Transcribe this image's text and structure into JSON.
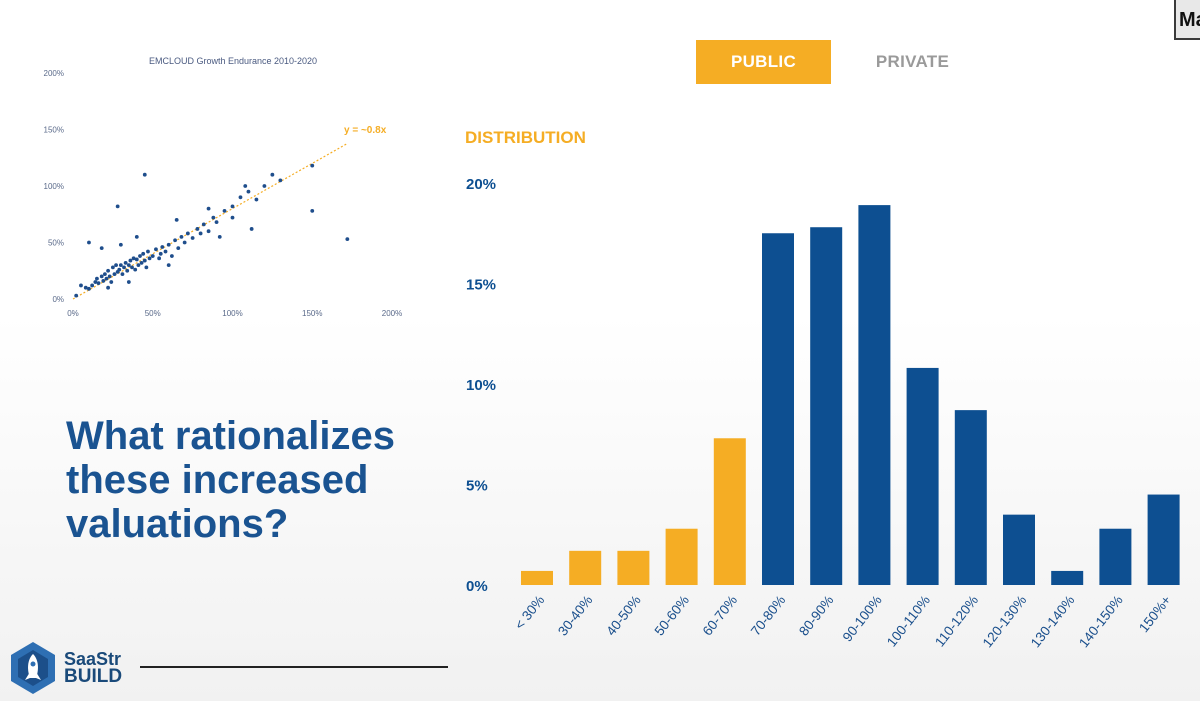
{
  "corner_label": "Ma",
  "tabs": {
    "public": "PUBLIC",
    "private": "PRIVATE"
  },
  "headline": "What rationalizes these increased valuations?",
  "logo": {
    "line1": "SaaStr",
    "line2": "BUILD"
  },
  "colors": {
    "blue": "#0d4f91",
    "orange": "#f5ad24",
    "headline": "#1a5391"
  },
  "chart_data": [
    {
      "type": "bar",
      "title": "DISTRIBUTION",
      "categories": [
        "< 30%",
        "30-40%",
        "40-50%",
        "50-60%",
        "60-70%",
        "70-80%",
        "80-90%",
        "90-100%",
        "100-110%",
        "110-120%",
        "120-130%",
        "130-140%",
        "140-150%",
        "150%+"
      ],
      "values": [
        0.7,
        1.7,
        1.7,
        2.8,
        7.3,
        17.5,
        17.8,
        18.9,
        10.8,
        8.7,
        3.5,
        0.7,
        2.8,
        4.5
      ],
      "highlight_orange_count": 5,
      "yticks": [
        "0%",
        "5%",
        "10%",
        "15%",
        "20%"
      ],
      "ylim": [
        0,
        20
      ],
      "grid": false
    },
    {
      "type": "scatter",
      "title": "EMCLOUD Growth Endurance 2010-2020",
      "xticks": [
        "0%",
        "50%",
        "100%",
        "150%",
        "200%"
      ],
      "yticks": [
        "0%",
        "50%",
        "100%",
        "150%",
        "200%"
      ],
      "xlim": [
        0,
        200
      ],
      "ylim": [
        0,
        200
      ],
      "trendline_label": "y = ~0.8x",
      "trendline_slope": 0.8,
      "points": [
        [
          2,
          3
        ],
        [
          5,
          12
        ],
        [
          8,
          10
        ],
        [
          10,
          9
        ],
        [
          12,
          12
        ],
        [
          14,
          15
        ],
        [
          15,
          18
        ],
        [
          16,
          14
        ],
        [
          18,
          20
        ],
        [
          19,
          16
        ],
        [
          20,
          22
        ],
        [
          21,
          18
        ],
        [
          22,
          25
        ],
        [
          23,
          20
        ],
        [
          24,
          15
        ],
        [
          25,
          28
        ],
        [
          26,
          22
        ],
        [
          27,
          30
        ],
        [
          28,
          24
        ],
        [
          29,
          26
        ],
        [
          30,
          30
        ],
        [
          31,
          22
        ],
        [
          32,
          28
        ],
        [
          33,
          32
        ],
        [
          34,
          25
        ],
        [
          35,
          30
        ],
        [
          36,
          34
        ],
        [
          37,
          28
        ],
        [
          38,
          36
        ],
        [
          39,
          26
        ],
        [
          40,
          35
        ],
        [
          41,
          30
        ],
        [
          42,
          38
        ],
        [
          43,
          32
        ],
        [
          44,
          40
        ],
        [
          45,
          34
        ],
        [
          46,
          28
        ],
        [
          47,
          42
        ],
        [
          48,
          36
        ],
        [
          50,
          38
        ],
        [
          52,
          44
        ],
        [
          54,
          36
        ],
        [
          55,
          40
        ],
        [
          56,
          46
        ],
        [
          58,
          42
        ],
        [
          60,
          48
        ],
        [
          62,
          38
        ],
        [
          64,
          52
        ],
        [
          66,
          45
        ],
        [
          68,
          55
        ],
        [
          70,
          50
        ],
        [
          72,
          58
        ],
        [
          75,
          54
        ],
        [
          78,
          62
        ],
        [
          80,
          58
        ],
        [
          82,
          66
        ],
        [
          85,
          60
        ],
        [
          88,
          72
        ],
        [
          90,
          68
        ],
        [
          95,
          78
        ],
        [
          100,
          82
        ],
        [
          105,
          90
        ],
        [
          110,
          95
        ],
        [
          112,
          62
        ],
        [
          115,
          88
        ],
        [
          120,
          100
        ],
        [
          125,
          110
        ],
        [
          130,
          105
        ],
        [
          150,
          118
        ],
        [
          150,
          78
        ],
        [
          172,
          53
        ],
        [
          45,
          110
        ],
        [
          28,
          82
        ],
        [
          10,
          50
        ],
        [
          30,
          48
        ],
        [
          18,
          45
        ],
        [
          40,
          55
        ],
        [
          60,
          30
        ],
        [
          92,
          55
        ],
        [
          100,
          72
        ],
        [
          108,
          100
        ],
        [
          85,
          80
        ],
        [
          22,
          10
        ],
        [
          35,
          15
        ],
        [
          65,
          70
        ]
      ]
    }
  ]
}
